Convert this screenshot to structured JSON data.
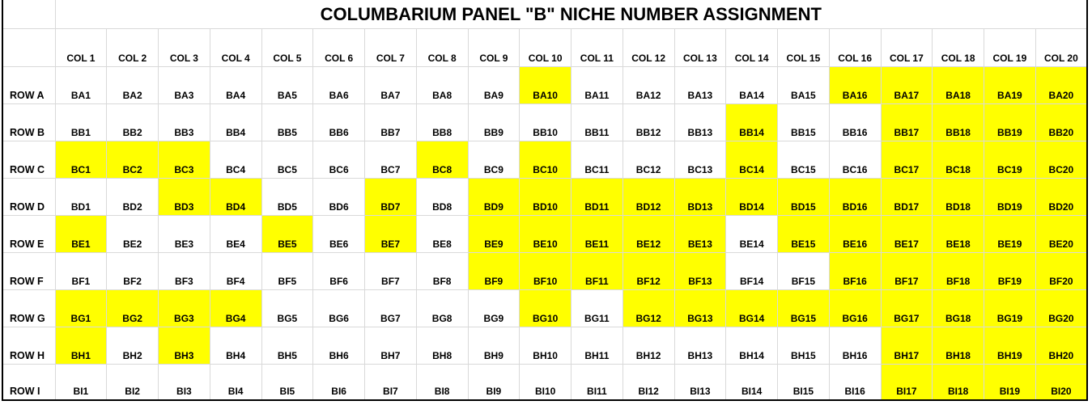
{
  "title": "COLUMBARIUM PANEL \"B\" NICHE NUMBER ASSIGNMENT",
  "highlight_color": "#ffff00",
  "columns": [
    "COL 1",
    "COL 2",
    "COL 3",
    "COL 4",
    "COL 5",
    "COL 6",
    "COL 7",
    "COL 8",
    "COL 9",
    "COL 10",
    "COL 11",
    "COL 12",
    "COL 13",
    "COL 14",
    "COL 15",
    "COL 16",
    "COL 17",
    "COL 18",
    "COL 19",
    "COL 20"
  ],
  "rows": [
    {
      "label": "ROW A",
      "cells": [
        "BA1",
        "BA2",
        "BA3",
        "BA4",
        "BA5",
        "BA6",
        "BA7",
        "BA8",
        "BA9",
        "BA10",
        "BA11",
        "BA12",
        "BA13",
        "BA14",
        "BA15",
        "BA16",
        "BA17",
        "BA18",
        "BA19",
        "BA20"
      ],
      "highlighted": [
        10,
        16,
        17,
        18,
        19,
        20
      ]
    },
    {
      "label": "ROW B",
      "cells": [
        "BB1",
        "BB2",
        "BB3",
        "BB4",
        "BB5",
        "BB6",
        "BB7",
        "BB8",
        "BB9",
        "BB10",
        "BB11",
        "BB12",
        "BB13",
        "BB14",
        "BB15",
        "BB16",
        "BB17",
        "BB18",
        "BB19",
        "BB20"
      ],
      "highlighted": [
        14,
        17,
        18,
        19,
        20
      ]
    },
    {
      "label": "ROW C",
      "cells": [
        "BC1",
        "BC2",
        "BC3",
        "BC4",
        "BC5",
        "BC6",
        "BC7",
        "BC8",
        "BC9",
        "BC10",
        "BC11",
        "BC12",
        "BC13",
        "BC14",
        "BC15",
        "BC16",
        "BC17",
        "BC18",
        "BC19",
        "BC20"
      ],
      "highlighted": [
        1,
        2,
        3,
        8,
        10,
        14,
        17,
        18,
        19,
        20
      ]
    },
    {
      "label": "ROW D",
      "cells": [
        "BD1",
        "BD2",
        "BD3",
        "BD4",
        "BD5",
        "BD6",
        "BD7",
        "BD8",
        "BD9",
        "BD10",
        "BD11",
        "BD12",
        "BD13",
        "BD14",
        "BD15",
        "BD16",
        "BD17",
        "BD18",
        "BD19",
        "BD20"
      ],
      "highlighted": [
        3,
        4,
        7,
        9,
        10,
        11,
        12,
        13,
        14,
        15,
        16,
        17,
        18,
        19,
        20
      ]
    },
    {
      "label": "ROW E",
      "cells": [
        "BE1",
        "BE2",
        "BE3",
        "BE4",
        "BE5",
        "BE6",
        "BE7",
        "BE8",
        "BE9",
        "BE10",
        "BE11",
        "BE12",
        "BE13",
        "BE14",
        "BE15",
        "BE16",
        "BE17",
        "BE18",
        "BE19",
        "BE20"
      ],
      "highlighted": [
        1,
        5,
        7,
        9,
        10,
        11,
        12,
        13,
        15,
        16,
        17,
        18,
        19,
        20
      ]
    },
    {
      "label": "ROW F",
      "cells": [
        "BF1",
        "BF2",
        "BF3",
        "BF4",
        "BF5",
        "BF6",
        "BF7",
        "BF8",
        "BF9",
        "BF10",
        "BF11",
        "BF12",
        "BF13",
        "BF14",
        "BF15",
        "BF16",
        "BF17",
        "BF18",
        "BF19",
        "BF20"
      ],
      "highlighted": [
        9,
        10,
        11,
        12,
        13,
        16,
        17,
        18,
        19,
        20
      ]
    },
    {
      "label": "ROW G",
      "cells": [
        "BG1",
        "BG2",
        "BG3",
        "BG4",
        "BG5",
        "BG6",
        "BG7",
        "BG8",
        "BG9",
        "BG10",
        "BG11",
        "BG12",
        "BG13",
        "BG14",
        "BG15",
        "BG16",
        "BG17",
        "BG18",
        "BG19",
        "BG20"
      ],
      "highlighted": [
        1,
        2,
        3,
        4,
        10,
        12,
        13,
        14,
        15,
        16,
        17,
        18,
        19,
        20
      ]
    },
    {
      "label": "ROW H",
      "cells": [
        "BH1",
        "BH2",
        "BH3",
        "BH4",
        "BH5",
        "BH6",
        "BH7",
        "BH8",
        "BH9",
        "BH10",
        "BH11",
        "BH12",
        "BH13",
        "BH14",
        "BH15",
        "BH16",
        "BH17",
        "BH18",
        "BH19",
        "BH20"
      ],
      "highlighted": [
        1,
        3,
        17,
        18,
        19,
        20
      ]
    },
    {
      "label": "ROW I",
      "cells": [
        "BI1",
        "BI2",
        "BI3",
        "BI4",
        "BI5",
        "BI6",
        "BI7",
        "BI8",
        "BI9",
        "BI10",
        "BI11",
        "BI12",
        "BI13",
        "BI14",
        "BI15",
        "BI16",
        "BI17",
        "BI18",
        "BI19",
        "BI20"
      ],
      "highlighted": [
        17,
        18,
        19,
        20
      ]
    }
  ]
}
